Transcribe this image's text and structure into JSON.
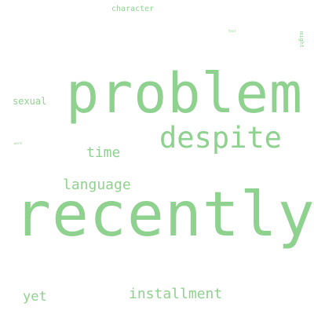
{
  "word_cloud": {
    "color": "#8fd18f",
    "words": {
      "character": "character",
      "tiny1": "text",
      "might": "might",
      "problem": "problem",
      "sexual": "sexual",
      "despite": "despite",
      "tiny2": "word",
      "time": "time",
      "language": "language",
      "recently": "recently",
      "yet": "yet",
      "installment": "installment"
    }
  }
}
